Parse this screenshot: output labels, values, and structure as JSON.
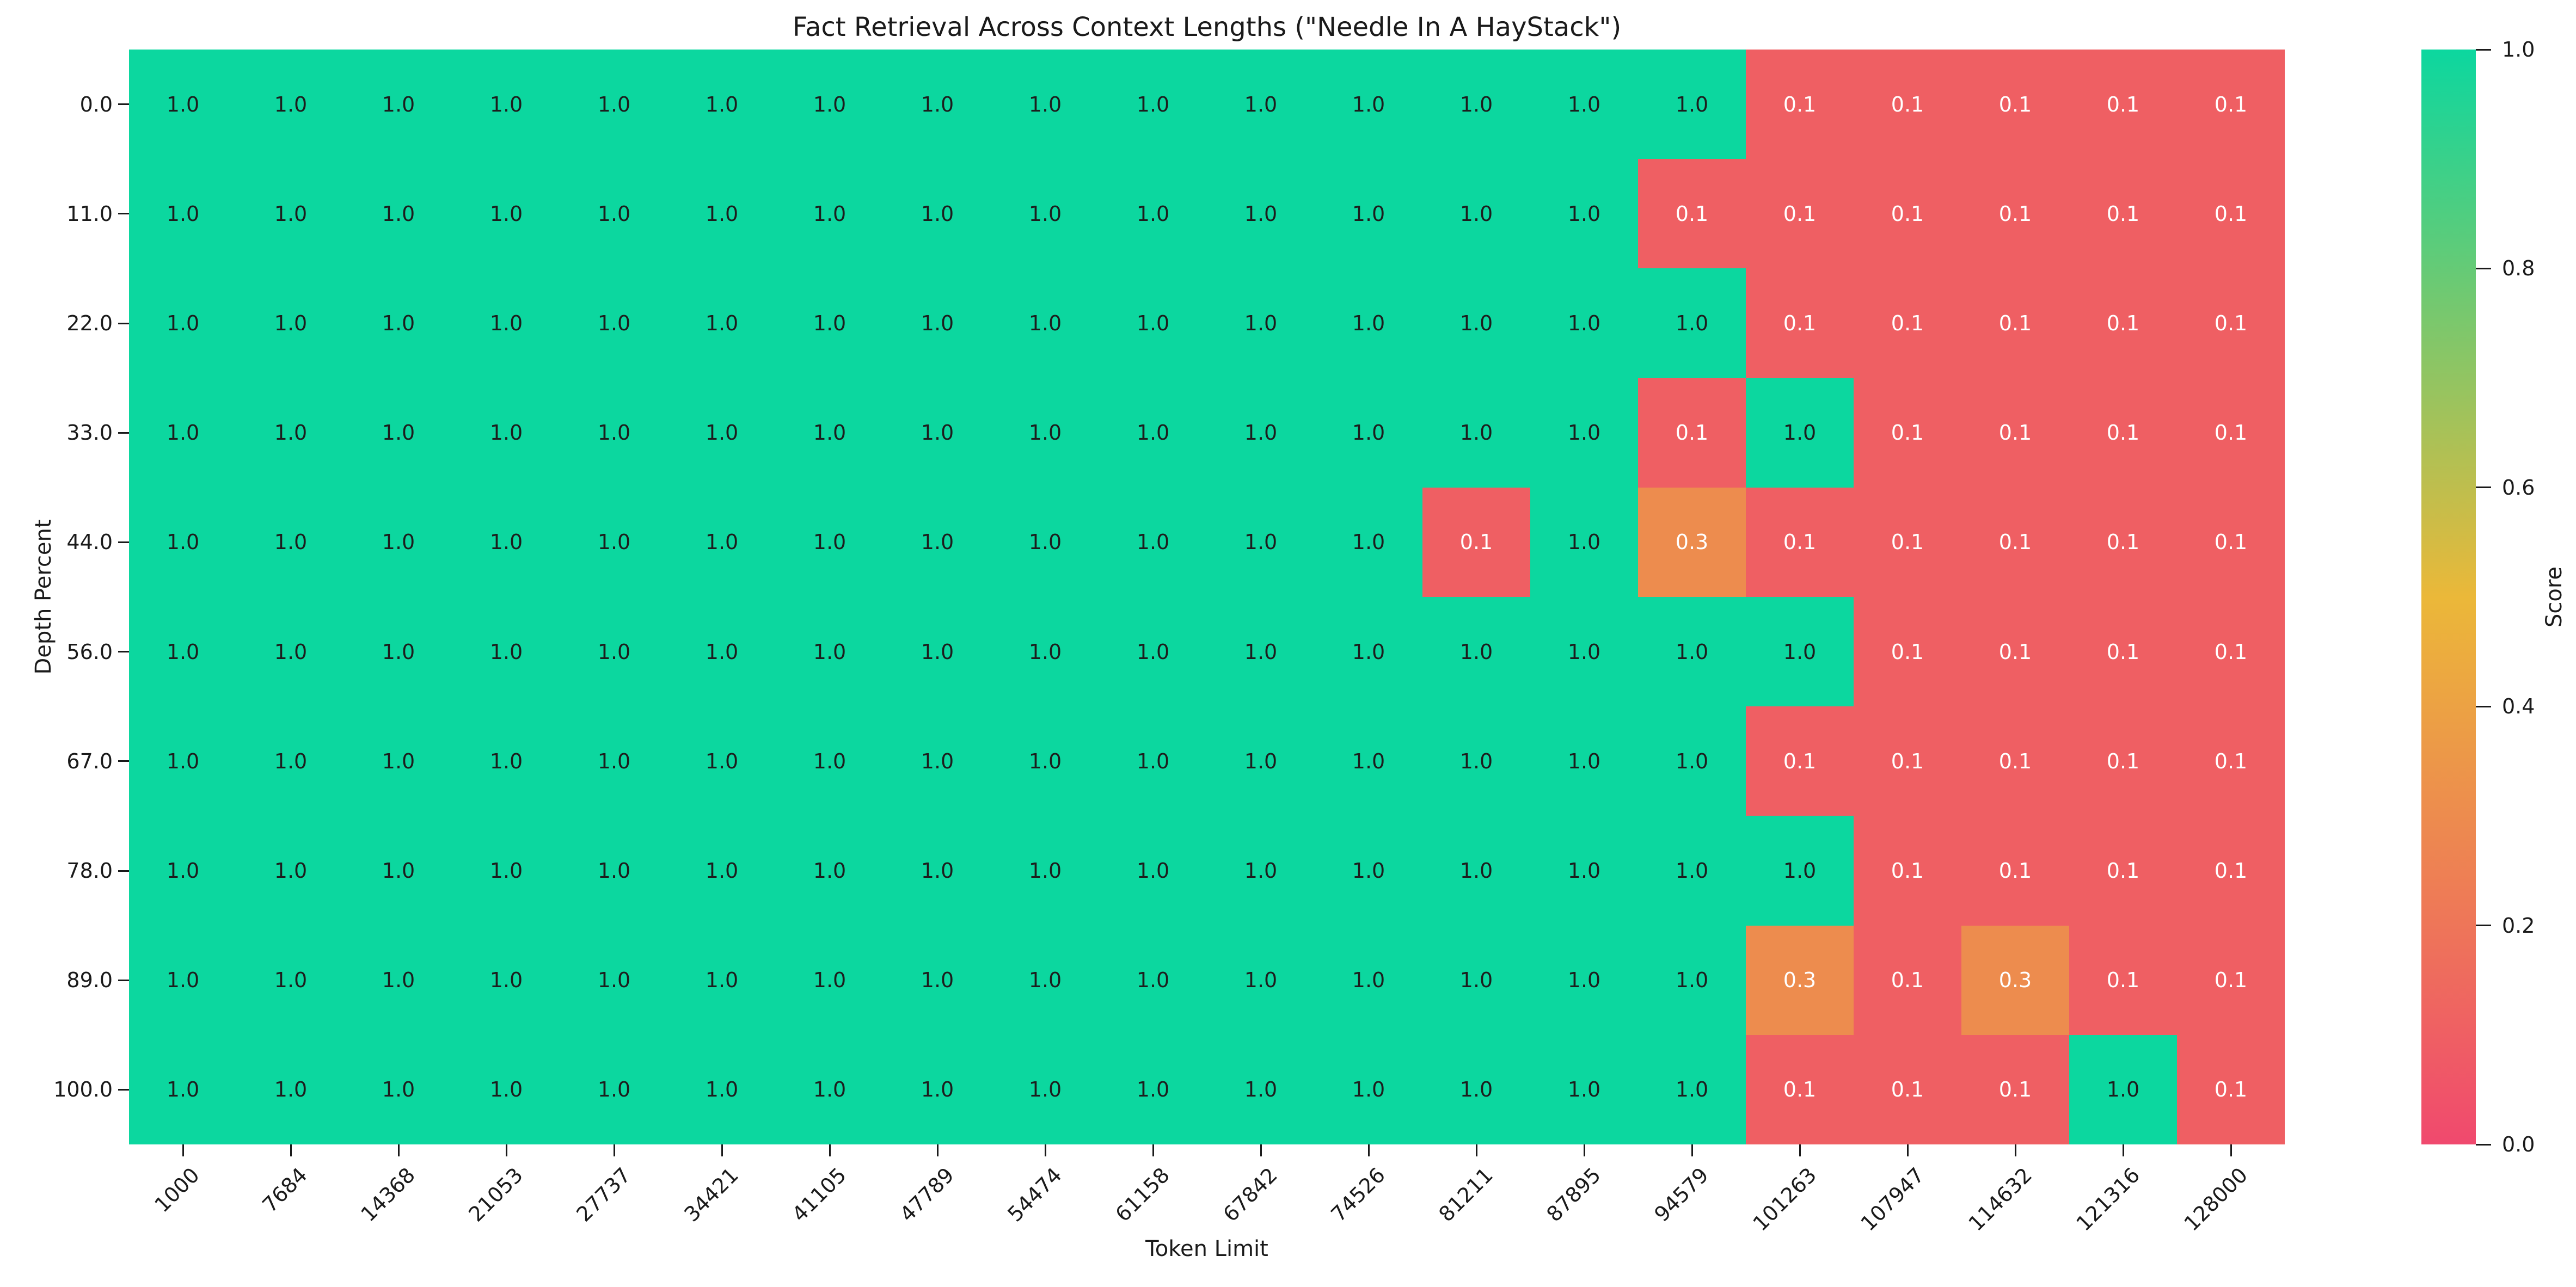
{
  "figure": {
    "background": "#ffffff"
  },
  "chart_data": {
    "type": "heatmap",
    "title": "Fact Retrieval Across Context Lengths (\"Needle In A HayStack\")",
    "xlabel": "Token Limit",
    "ylabel": "Depth Percent",
    "x_labels": [
      "1000",
      "7684",
      "14368",
      "21053",
      "27737",
      "34421",
      "41105",
      "47789",
      "54474",
      "61158",
      "67842",
      "74526",
      "81211",
      "87895",
      "94579",
      "101263",
      "107947",
      "114632",
      "121316",
      "128000"
    ],
    "y_labels": [
      "0.0",
      "11.0",
      "22.0",
      "33.0",
      "44.0",
      "56.0",
      "67.0",
      "78.0",
      "89.0",
      "100.0"
    ],
    "values": [
      [
        1.0,
        1.0,
        1.0,
        1.0,
        1.0,
        1.0,
        1.0,
        1.0,
        1.0,
        1.0,
        1.0,
        1.0,
        1.0,
        1.0,
        1.0,
        0.1,
        0.1,
        0.1,
        0.1,
        0.1
      ],
      [
        1.0,
        1.0,
        1.0,
        1.0,
        1.0,
        1.0,
        1.0,
        1.0,
        1.0,
        1.0,
        1.0,
        1.0,
        1.0,
        1.0,
        0.1,
        0.1,
        0.1,
        0.1,
        0.1,
        0.1
      ],
      [
        1.0,
        1.0,
        1.0,
        1.0,
        1.0,
        1.0,
        1.0,
        1.0,
        1.0,
        1.0,
        1.0,
        1.0,
        1.0,
        1.0,
        1.0,
        0.1,
        0.1,
        0.1,
        0.1,
        0.1
      ],
      [
        1.0,
        1.0,
        1.0,
        1.0,
        1.0,
        1.0,
        1.0,
        1.0,
        1.0,
        1.0,
        1.0,
        1.0,
        1.0,
        1.0,
        0.1,
        1.0,
        0.1,
        0.1,
        0.1,
        0.1
      ],
      [
        1.0,
        1.0,
        1.0,
        1.0,
        1.0,
        1.0,
        1.0,
        1.0,
        1.0,
        1.0,
        1.0,
        1.0,
        0.1,
        1.0,
        0.3,
        0.1,
        0.1,
        0.1,
        0.1,
        0.1
      ],
      [
        1.0,
        1.0,
        1.0,
        1.0,
        1.0,
        1.0,
        1.0,
        1.0,
        1.0,
        1.0,
        1.0,
        1.0,
        1.0,
        1.0,
        1.0,
        1.0,
        0.1,
        0.1,
        0.1,
        0.1
      ],
      [
        1.0,
        1.0,
        1.0,
        1.0,
        1.0,
        1.0,
        1.0,
        1.0,
        1.0,
        1.0,
        1.0,
        1.0,
        1.0,
        1.0,
        1.0,
        0.1,
        0.1,
        0.1,
        0.1,
        0.1
      ],
      [
        1.0,
        1.0,
        1.0,
        1.0,
        1.0,
        1.0,
        1.0,
        1.0,
        1.0,
        1.0,
        1.0,
        1.0,
        1.0,
        1.0,
        1.0,
        1.0,
        0.1,
        0.1,
        0.1,
        0.1
      ],
      [
        1.0,
        1.0,
        1.0,
        1.0,
        1.0,
        1.0,
        1.0,
        1.0,
        1.0,
        1.0,
        1.0,
        1.0,
        1.0,
        1.0,
        1.0,
        0.3,
        0.1,
        0.3,
        0.1,
        0.1
      ],
      [
        1.0,
        1.0,
        1.0,
        1.0,
        1.0,
        1.0,
        1.0,
        1.0,
        1.0,
        1.0,
        1.0,
        1.0,
        1.0,
        1.0,
        1.0,
        0.1,
        0.1,
        0.1,
        1.0,
        0.1
      ]
    ],
    "colormap": {
      "stops": [
        "#F0496E",
        "#EBB839",
        "#0CD79F"
      ],
      "domain": [
        0.0,
        0.5,
        1.0
      ]
    },
    "cell_text_dark": "#1d1d1d",
    "cell_text_light": "#ffffff",
    "colorbar": {
      "label": "Score",
      "tick_labels": [
        "1.0",
        "0.8",
        "0.6",
        "0.4",
        "0.2",
        "0.0"
      ],
      "tick_values": [
        1.0,
        0.8,
        0.6,
        0.4,
        0.2,
        0.0
      ],
      "range": [
        0.0,
        1.0
      ]
    },
    "legend_position": "right-colorbar",
    "grid": false
  }
}
